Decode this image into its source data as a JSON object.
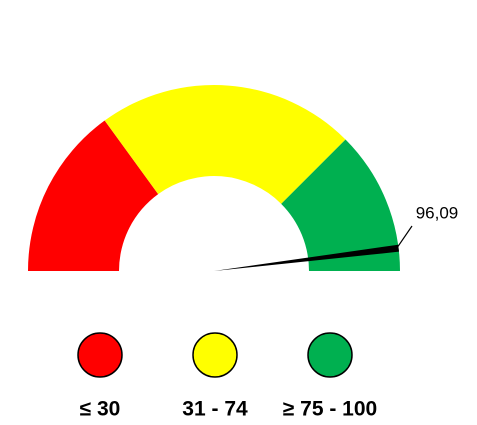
{
  "chart_data": {
    "type": "gauge",
    "value": 96.09,
    "value_label": "96,09",
    "min": 0,
    "max": 100,
    "bands": [
      {
        "name": "≤ 30",
        "color": "#ff0000",
        "from": 0,
        "to": 30
      },
      {
        "name": "31 - 74",
        "color": "#ffff00",
        "from": 30,
        "to": 75
      },
      {
        "name": "≥ 75 - 100",
        "color": "#00b050",
        "from": 75,
        "to": 100
      }
    ]
  }
}
